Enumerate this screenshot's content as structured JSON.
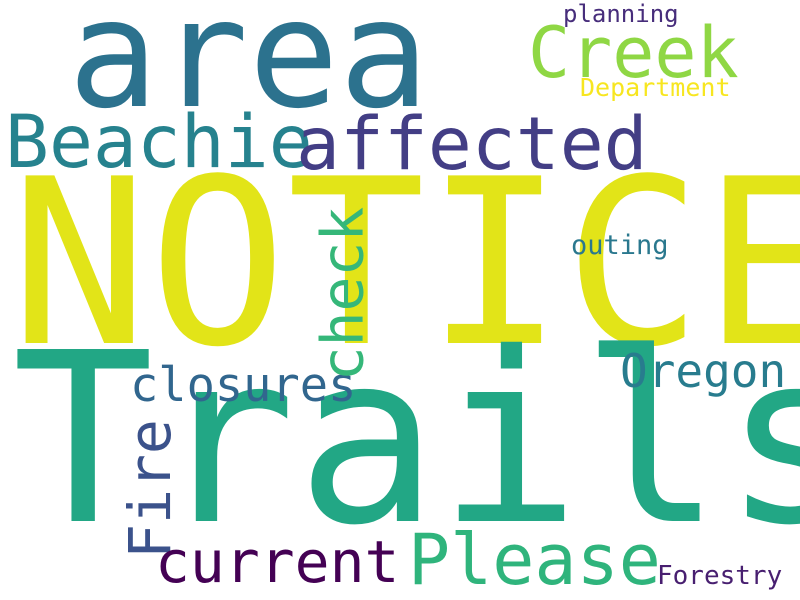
{
  "words": [
    {
      "id": "area",
      "text": "area",
      "color": "#2c728e"
    },
    {
      "id": "notice",
      "text": "NOTICE",
      "color": "#e2e418"
    },
    {
      "id": "trails",
      "text": "Trails",
      "color": "#22a785"
    },
    {
      "id": "creek",
      "text": "Creek",
      "color": "#8fd744"
    },
    {
      "id": "planning",
      "text": "planning",
      "color": "#472d7b"
    },
    {
      "id": "department",
      "text": "Department",
      "color": "#f7e620"
    },
    {
      "id": "beachie",
      "text": "Beachie",
      "color": "#26828e"
    },
    {
      "id": "affected",
      "text": "affected",
      "color": "#433e85"
    },
    {
      "id": "outing",
      "text": "outing",
      "color": "#2a788e"
    },
    {
      "id": "oregon",
      "text": "Oregon",
      "color": "#287c8e"
    },
    {
      "id": "closures",
      "text": "closures",
      "color": "#31668e"
    },
    {
      "id": "check",
      "text": "check",
      "color": "#35b779"
    },
    {
      "id": "fire",
      "text": "Fire",
      "color": "#3b528b"
    },
    {
      "id": "current",
      "text": "current",
      "color": "#440154"
    },
    {
      "id": "please",
      "text": "Please",
      "color": "#2fb47c"
    },
    {
      "id": "forestry",
      "text": "Forestry",
      "color": "#481f70"
    }
  ]
}
